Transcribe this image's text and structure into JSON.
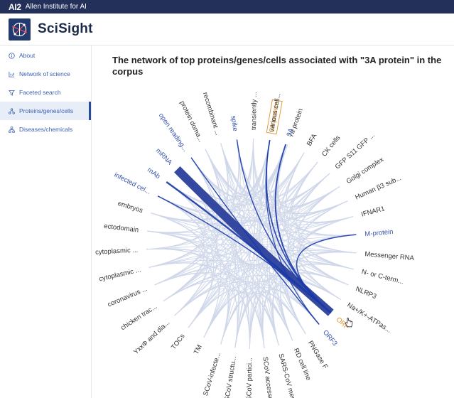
{
  "topbar": {
    "logo_text": "AI2",
    "org": "Allen Institute for AI"
  },
  "header": {
    "brand": "SciSight",
    "logo_icon": "network-logo-icon"
  },
  "sidebar": {
    "items": [
      {
        "label": "About",
        "icon": "info-circle-icon",
        "active": false
      },
      {
        "label": "Network of science",
        "icon": "chart-icon",
        "active": false
      },
      {
        "label": "Faceted search",
        "icon": "filter-icon",
        "active": false
      },
      {
        "label": "Proteins/genes/cells",
        "icon": "molecule-icon",
        "active": true
      },
      {
        "label": "Diseases/chemicals",
        "icon": "hierarchy-icon",
        "active": false
      }
    ]
  },
  "main": {
    "title": "The network of top proteins/genes/cells associated with \"3A protein\" in the corpus"
  },
  "colors": {
    "highlight": "#2b3f9c",
    "strong_link": "#1a3aa8",
    "faint_link": "#c7d1e6",
    "selected": "#e0902a",
    "label": "#333333",
    "label_blue": "#3552a8"
  },
  "chord": {
    "selected": "3A protein",
    "nodes": [
      {
        "label": "3A protein",
        "angle": -80,
        "style": "selected"
      },
      {
        "label": "7a protein",
        "angle": -70,
        "style": "normal"
      },
      {
        "label": "BFA",
        "angle": -60,
        "style": "normal"
      },
      {
        "label": "CK cells",
        "angle": -51,
        "style": "normal"
      },
      {
        "label": "GFP S11 GFP ...",
        "angle": -42,
        "style": "normal"
      },
      {
        "label": "Golgi complex",
        "angle": -33,
        "style": "normal"
      },
      {
        "label": "Human β3 sub...",
        "angle": -24,
        "style": "normal"
      },
      {
        "label": "IFNAR1",
        "angle": -15,
        "style": "normal"
      },
      {
        "label": "M-protein",
        "angle": -5,
        "style": "blue"
      },
      {
        "label": "Messenger RNA",
        "angle": 5,
        "style": "normal"
      },
      {
        "label": "N- or C-term...",
        "angle": 14,
        "style": "normal"
      },
      {
        "label": "NLRP3",
        "angle": 23,
        "style": "normal"
      },
      {
        "label": "Na+/K+-ATPas...",
        "angle": 32,
        "style": "normal"
      },
      {
        "label": "ORF",
        "angle": 41,
        "style": "selected"
      },
      {
        "label": "ORF3",
        "angle": 50,
        "style": "blue"
      },
      {
        "label": "PNGase F",
        "angle": 59,
        "style": "normal"
      },
      {
        "label": "RD cell line",
        "angle": 67,
        "style": "normal"
      },
      {
        "label": "SARS-CoV mem...",
        "angle": 75,
        "style": "normal"
      },
      {
        "label": "SCoV accesso...",
        "angle": 83,
        "style": "normal"
      },
      {
        "label": "SCoV partici...",
        "angle": 91,
        "style": "normal"
      },
      {
        "label": "SCoV structu...",
        "angle": 99,
        "style": "normal"
      },
      {
        "label": "SCoV-infecte...",
        "angle": 107,
        "style": "normal"
      },
      {
        "label": "TM",
        "angle": 117,
        "style": "normal"
      },
      {
        "label": "TOCs",
        "angle": 127,
        "style": "normal"
      },
      {
        "label": "YxxΦ and dia...",
        "angle": 137,
        "style": "normal"
      },
      {
        "label": "chicken trac...",
        "angle": 147,
        "style": "normal"
      },
      {
        "label": "coronavirus ...",
        "angle": 157,
        "style": "normal"
      },
      {
        "label": "cytoplasmic ...",
        "angle": 167,
        "style": "normal"
      },
      {
        "label": "cytoplasmic ...",
        "angle": 177,
        "style": "normal"
      },
      {
        "label": "ectodomain",
        "angle": 187,
        "style": "normal"
      },
      {
        "label": "embryos",
        "angle": 197,
        "style": "normal"
      },
      {
        "label": "infected cel...",
        "angle": 207,
        "style": "blue"
      },
      {
        "label": "mAb",
        "angle": 216,
        "style": "blue"
      },
      {
        "label": "mRNA",
        "angle": 225,
        "style": "blue"
      },
      {
        "label": "open reading...",
        "angle": 235,
        "style": "blue"
      },
      {
        "label": "protein doma...",
        "angle": 244,
        "style": "normal"
      },
      {
        "label": "recombinant ...",
        "angle": 253,
        "style": "normal"
      },
      {
        "label": "spike",
        "angle": 262,
        "style": "blue"
      },
      {
        "label": "transiently ...",
        "angle": 271,
        "style": "normal"
      },
      {
        "label": "various cell...",
        "angle": 280,
        "style": "normal"
      },
      {
        "label": "3A",
        "angle": 289,
        "style": "blue"
      }
    ],
    "strong_links": [
      {
        "from": "mRNA",
        "to": "ORF",
        "weight": 10
      },
      {
        "from": "mAb",
        "to": "ORF",
        "weight": 2
      },
      {
        "from": "infected cel...",
        "to": "ORF",
        "weight": 1.2
      },
      {
        "from": "3A",
        "to": "ORF",
        "weight": 1.6
      },
      {
        "from": "3A protein",
        "to": "ORF",
        "weight": 1.4
      },
      {
        "from": "spike",
        "to": "ORF",
        "weight": 1.2
      },
      {
        "from": "M-protein",
        "to": "ORF",
        "weight": 1.2
      },
      {
        "from": "open reading...",
        "to": "ORF3",
        "weight": 1.2
      },
      {
        "from": "3A protein",
        "to": "ORF3",
        "weight": 1
      }
    ]
  }
}
